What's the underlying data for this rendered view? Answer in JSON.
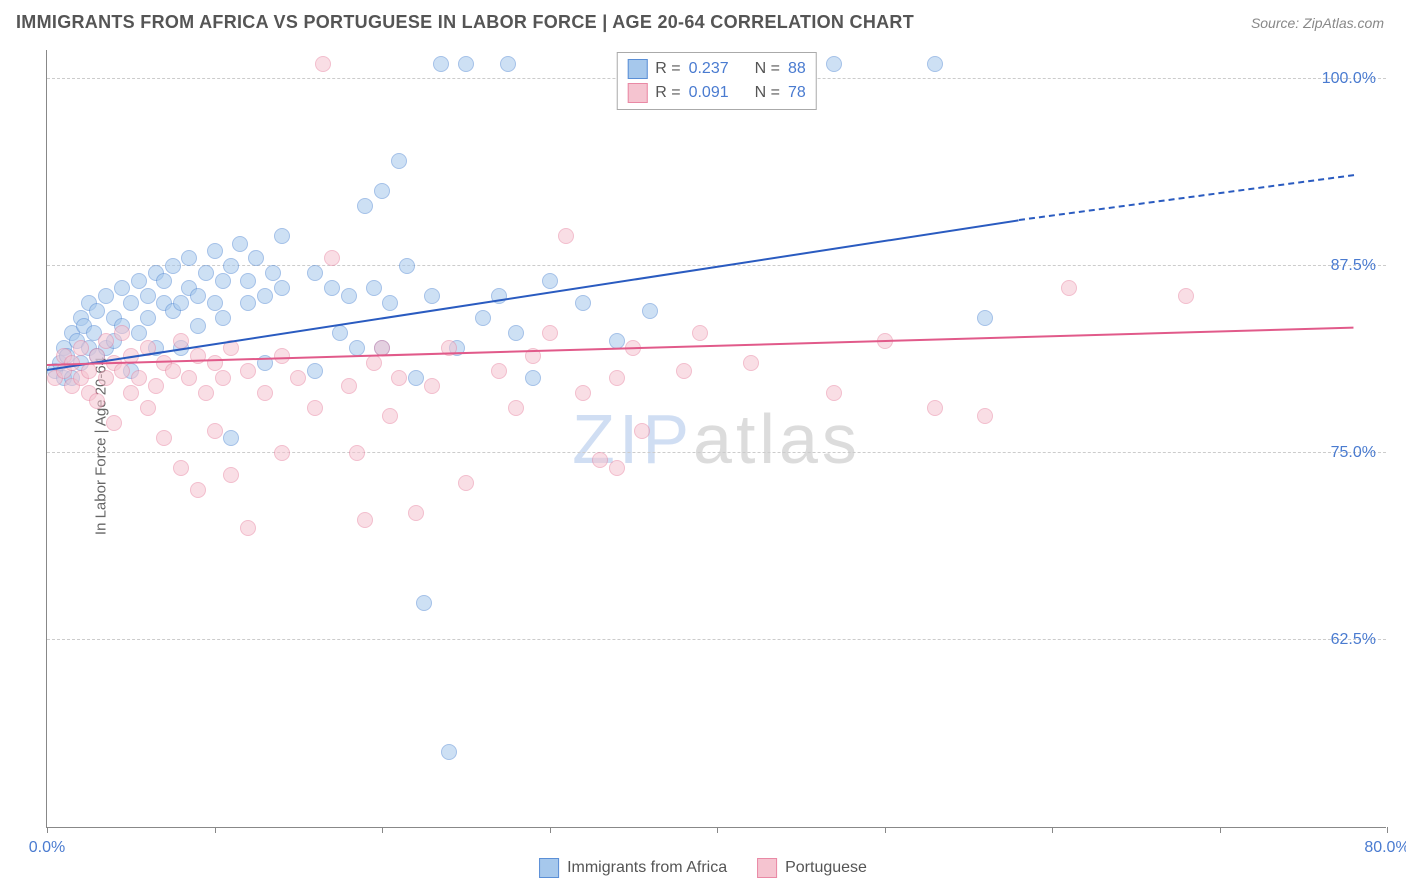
{
  "title": "IMMIGRANTS FROM AFRICA VS PORTUGUESE IN LABOR FORCE | AGE 20-64 CORRELATION CHART",
  "source": "Source: ZipAtlas.com",
  "ylabel": "In Labor Force | Age 20-64",
  "watermark": {
    "zip": "ZIP",
    "atlas": "atlas"
  },
  "chart": {
    "type": "scatter",
    "background_color": "#ffffff",
    "grid_color": "#cccccc",
    "axis_color": "#888888",
    "tick_label_color": "#4a7bd0",
    "label_fontsize": 15,
    "tick_fontsize": 16,
    "xlim": [
      0,
      80
    ],
    "ylim": [
      50,
      102
    ],
    "x_ticks": [
      0,
      10,
      20,
      30,
      40,
      50,
      60,
      70,
      80
    ],
    "x_tick_labels": {
      "0": "0.0%",
      "80": "80.0%"
    },
    "y_gridlines": [
      62.5,
      75.0,
      87.5,
      100.0
    ],
    "y_tick_labels": [
      "62.5%",
      "75.0%",
      "87.5%",
      "100.0%"
    ],
    "marker_radius": 8,
    "marker_opacity": 0.55,
    "marker_border_width": 1,
    "series": [
      {
        "name": "Immigrants from Africa",
        "fill": "#a6c8ec",
        "stroke": "#5b8fd6",
        "trend_color": "#2a5bc0",
        "trend_width": 2,
        "r": 0.237,
        "n": 88,
        "trend": {
          "x1": 0,
          "y1": 80.5,
          "x2_solid": 58,
          "y2_solid": 90.5,
          "x2_dash": 78,
          "y2_dash": 93.5
        },
        "points": [
          [
            0.5,
            80.5
          ],
          [
            0.8,
            81.0
          ],
          [
            1.0,
            80.0
          ],
          [
            1.0,
            82.0
          ],
          [
            1.2,
            81.5
          ],
          [
            1.5,
            83.0
          ],
          [
            1.5,
            80.0
          ],
          [
            1.8,
            82.5
          ],
          [
            2.0,
            84.0
          ],
          [
            2.0,
            81.0
          ],
          [
            2.2,
            83.5
          ],
          [
            2.5,
            82.0
          ],
          [
            2.5,
            85.0
          ],
          [
            2.8,
            83.0
          ],
          [
            3.0,
            84.5
          ],
          [
            3.0,
            81.5
          ],
          [
            3.5,
            82.0
          ],
          [
            3.5,
            85.5
          ],
          [
            4.0,
            84.0
          ],
          [
            4.0,
            82.5
          ],
          [
            4.5,
            83.5
          ],
          [
            4.5,
            86.0
          ],
          [
            5.0,
            85.0
          ],
          [
            5.0,
            80.5
          ],
          [
            5.5,
            86.5
          ],
          [
            5.5,
            83.0
          ],
          [
            6.0,
            85.5
          ],
          [
            6.0,
            84.0
          ],
          [
            6.5,
            87.0
          ],
          [
            6.5,
            82.0
          ],
          [
            7.0,
            85.0
          ],
          [
            7.0,
            86.5
          ],
          [
            7.5,
            84.5
          ],
          [
            7.5,
            87.5
          ],
          [
            8.0,
            85.0
          ],
          [
            8.0,
            82.0
          ],
          [
            8.5,
            86.0
          ],
          [
            8.5,
            88.0
          ],
          [
            9.0,
            85.5
          ],
          [
            9.0,
            83.5
          ],
          [
            9.5,
            87.0
          ],
          [
            10.0,
            85.0
          ],
          [
            10.0,
            88.5
          ],
          [
            10.5,
            84.0
          ],
          [
            10.5,
            86.5
          ],
          [
            11.0,
            87.5
          ],
          [
            11.0,
            76.0
          ],
          [
            11.5,
            89.0
          ],
          [
            12.0,
            85.0
          ],
          [
            12.0,
            86.5
          ],
          [
            12.5,
            88.0
          ],
          [
            13.0,
            85.5
          ],
          [
            13.0,
            81.0
          ],
          [
            13.5,
            87.0
          ],
          [
            14.0,
            86.0
          ],
          [
            14.0,
            89.5
          ],
          [
            16.0,
            87.0
          ],
          [
            16.0,
            80.5
          ],
          [
            17.0,
            86.0
          ],
          [
            17.5,
            83.0
          ],
          [
            18.0,
            85.5
          ],
          [
            18.5,
            82.0
          ],
          [
            19.0,
            91.5
          ],
          [
            19.5,
            86.0
          ],
          [
            20.0,
            92.5
          ],
          [
            20.0,
            82.0
          ],
          [
            20.5,
            85.0
          ],
          [
            21.0,
            94.5
          ],
          [
            21.5,
            87.5
          ],
          [
            22.0,
            80.0
          ],
          [
            22.5,
            65.0
          ],
          [
            23.0,
            85.5
          ],
          [
            23.5,
            101.0
          ],
          [
            24.0,
            55.0
          ],
          [
            24.5,
            82.0
          ],
          [
            25.0,
            101.0
          ],
          [
            26.0,
            84.0
          ],
          [
            27.0,
            85.5
          ],
          [
            27.5,
            101.0
          ],
          [
            28.0,
            83.0
          ],
          [
            29.0,
            80.0
          ],
          [
            30.0,
            86.5
          ],
          [
            32.0,
            85.0
          ],
          [
            34.0,
            82.5
          ],
          [
            36.0,
            84.5
          ],
          [
            47.0,
            101.0
          ],
          [
            53.0,
            101.0
          ],
          [
            56.0,
            84.0
          ]
        ]
      },
      {
        "name": "Portuguese",
        "fill": "#f5c4d0",
        "stroke": "#e989a5",
        "trend_color": "#e15a8a",
        "trend_width": 2,
        "r": 0.091,
        "n": 78,
        "trend": {
          "x1": 0,
          "y1": 80.8,
          "x2_solid": 78,
          "y2_solid": 83.3,
          "x2_dash": 78,
          "y2_dash": 83.3
        },
        "points": [
          [
            0.5,
            80.0
          ],
          [
            1.0,
            80.5
          ],
          [
            1.0,
            81.5
          ],
          [
            1.5,
            79.5
          ],
          [
            1.5,
            81.0
          ],
          [
            2.0,
            80.0
          ],
          [
            2.0,
            82.0
          ],
          [
            2.5,
            80.5
          ],
          [
            2.5,
            79.0
          ],
          [
            3.0,
            81.5
          ],
          [
            3.0,
            78.5
          ],
          [
            3.5,
            80.0
          ],
          [
            3.5,
            82.5
          ],
          [
            4.0,
            77.0
          ],
          [
            4.0,
            81.0
          ],
          [
            4.5,
            80.5
          ],
          [
            4.5,
            83.0
          ],
          [
            5.0,
            79.0
          ],
          [
            5.0,
            81.5
          ],
          [
            5.5,
            80.0
          ],
          [
            6.0,
            82.0
          ],
          [
            6.0,
            78.0
          ],
          [
            6.5,
            79.5
          ],
          [
            7.0,
            81.0
          ],
          [
            7.0,
            76.0
          ],
          [
            7.5,
            80.5
          ],
          [
            8.0,
            82.5
          ],
          [
            8.0,
            74.0
          ],
          [
            8.5,
            80.0
          ],
          [
            9.0,
            81.5
          ],
          [
            9.0,
            72.5
          ],
          [
            9.5,
            79.0
          ],
          [
            10.0,
            81.0
          ],
          [
            10.0,
            76.5
          ],
          [
            10.5,
            80.0
          ],
          [
            11.0,
            82.0
          ],
          [
            11.0,
            73.5
          ],
          [
            12.0,
            80.5
          ],
          [
            12.0,
            70.0
          ],
          [
            13.0,
            79.0
          ],
          [
            14.0,
            81.5
          ],
          [
            14.0,
            75.0
          ],
          [
            15.0,
            80.0
          ],
          [
            16.0,
            78.0
          ],
          [
            16.5,
            101.0
          ],
          [
            17.0,
            88.0
          ],
          [
            18.0,
            79.5
          ],
          [
            18.5,
            75.0
          ],
          [
            19.0,
            70.5
          ],
          [
            19.5,
            81.0
          ],
          [
            20.0,
            82.0
          ],
          [
            20.5,
            77.5
          ],
          [
            21.0,
            80.0
          ],
          [
            22.0,
            71.0
          ],
          [
            23.0,
            79.5
          ],
          [
            24.0,
            82.0
          ],
          [
            25.0,
            73.0
          ],
          [
            27.0,
            80.5
          ],
          [
            28.0,
            78.0
          ],
          [
            29.0,
            81.5
          ],
          [
            30.0,
            83.0
          ],
          [
            31.0,
            89.5
          ],
          [
            32.0,
            79.0
          ],
          [
            33.0,
            74.5
          ],
          [
            34.0,
            80.0
          ],
          [
            34.0,
            74.0
          ],
          [
            35.0,
            82.0
          ],
          [
            35.5,
            76.5
          ],
          [
            38.0,
            80.5
          ],
          [
            39.0,
            83.0
          ],
          [
            42.0,
            81.0
          ],
          [
            44.0,
            101.0
          ],
          [
            47.0,
            79.0
          ],
          [
            50.0,
            82.5
          ],
          [
            53.0,
            78.0
          ],
          [
            56.0,
            77.5
          ],
          [
            61.0,
            86.0
          ],
          [
            68.0,
            85.5
          ]
        ]
      }
    ]
  },
  "legend_bottom": [
    {
      "label": "Immigrants from Africa",
      "fill": "#a6c8ec",
      "stroke": "#5b8fd6"
    },
    {
      "label": "Portuguese",
      "fill": "#f5c4d0",
      "stroke": "#e989a5"
    }
  ]
}
